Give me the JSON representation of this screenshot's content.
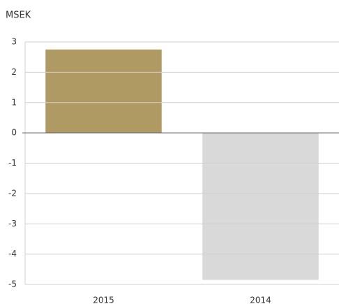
{
  "chart_data": {
    "type": "bar",
    "y_label": "MSEK",
    "categories": [
      "2015",
      "2014"
    ],
    "values": [
      2.75,
      -4.85
    ],
    "colors": [
      "#b09a64",
      "#d9d9d9"
    ],
    "ylim": [
      -5,
      3
    ],
    "yticks": [
      -5,
      -4,
      -3,
      -2,
      -1,
      0,
      1,
      2,
      3
    ],
    "grid": true
  }
}
